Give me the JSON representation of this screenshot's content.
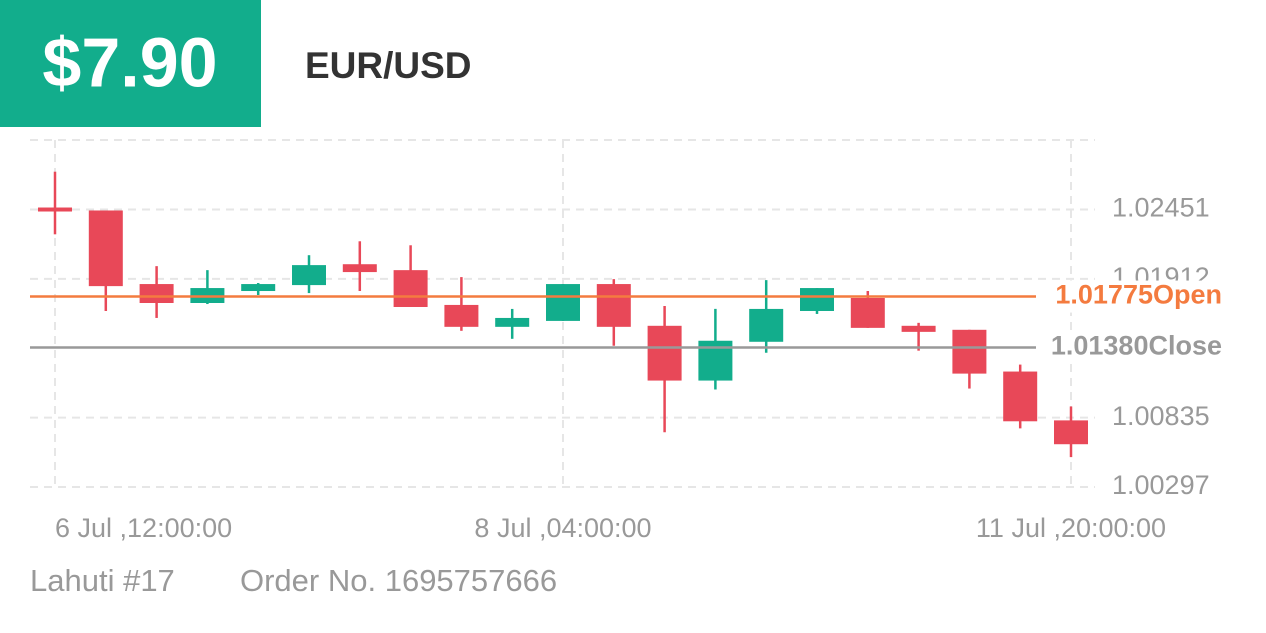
{
  "header": {
    "price": "$7.90",
    "pair": "EUR/USD"
  },
  "chart_data": {
    "type": "candlestick",
    "categories": [
      "6 Jul ,12:00:00",
      null,
      null,
      null,
      null,
      null,
      null,
      null,
      null,
      null,
      "8 Jul ,04:00:00",
      null,
      null,
      null,
      null,
      null,
      null,
      null,
      null,
      null,
      "11 Jul ,20:00:00"
    ],
    "open": [
      1.02466,
      1.02443,
      1.01872,
      1.01725,
      1.01818,
      1.01864,
      1.02026,
      1.0198,
      1.0171,
      1.0154,
      1.01586,
      1.01872,
      1.01548,
      1.01123,
      1.01424,
      1.01663,
      1.01764,
      1.01548,
      1.01517,
      1.01193,
      1.00814
    ],
    "high": [
      1.02744,
      1.02443,
      1.02011,
      1.0198,
      1.0188,
      1.02096,
      1.02204,
      1.02173,
      1.01926,
      1.01679,
      1.01872,
      1.0191,
      1.01702,
      1.01679,
      1.01903,
      1.01841,
      1.01818,
      1.01571,
      1.01517,
      1.01247,
      1.00922
    ],
    "low": [
      1.02258,
      1.01663,
      1.01609,
      1.01717,
      1.01787,
      1.01802,
      1.01818,
      1.01694,
      1.01509,
      1.01447,
      1.01586,
      1.01393,
      1.00722,
      1.01054,
      1.01339,
      1.0164,
      1.01532,
      1.01355,
      1.01061,
      1.00752,
      1.00529
    ],
    "close": [
      1.02435,
      1.01856,
      1.01725,
      1.01841,
      1.01872,
      1.02019,
      1.01965,
      1.01694,
      1.0154,
      1.01609,
      1.01872,
      1.0154,
      1.01123,
      1.01432,
      1.01679,
      1.01841,
      1.01532,
      1.01501,
      1.01177,
      1.00807,
      1.00629
    ],
    "up_color": "#12ad8c",
    "down_color": "#e84858",
    "ylim": [
      1.00297,
      1.0299
    ],
    "yticks": [
      1.00297,
      1.00835,
      1.01912,
      1.02451
    ],
    "grid": true,
    "reference_lines": [
      {
        "name": "Open",
        "value": 1.01775,
        "value_label": "1.01775",
        "color": "#f47b3f"
      },
      {
        "name": "Close",
        "value": 1.0138,
        "value_label": "1.01380",
        "color": "#999999"
      }
    ]
  },
  "footer": {
    "account": "Lahuti #17",
    "order": "Order No. 1695757666"
  }
}
